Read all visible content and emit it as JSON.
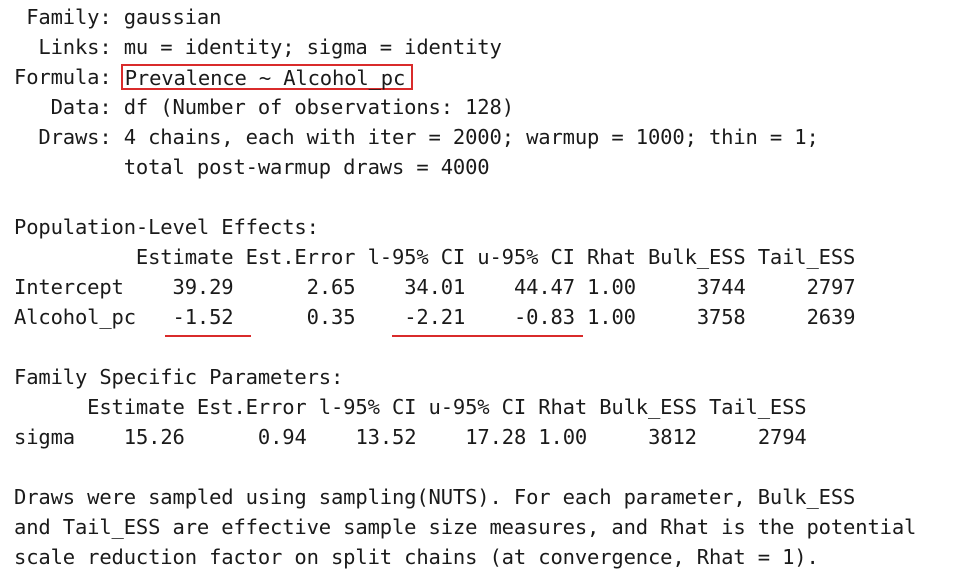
{
  "model_summary": {
    "family_key": " Family: ",
    "family_value": "gaussian",
    "links_key": "  Links: ",
    "links_value": "mu = identity; sigma = identity",
    "formula_key": "Formula: ",
    "formula_value": "Prevalence ~ Alcohol_pc",
    "data_key": "   Data: ",
    "data_value": "df (Number of observations: 128)",
    "draws_key": "  Draws: ",
    "draws_value": "4 chains, each with iter = 2000; warmup = 1000; thin = 1;",
    "draws_cont": "         total post-warmup draws = 4000"
  },
  "population_effects": {
    "title": "Population-Level Effects:",
    "header": "          Estimate Est.Error l-95% CI u-95% CI Rhat Bulk_ESS Tail_ESS",
    "rows": [
      {
        "name": "Intercept",
        "estimate": "39.29",
        "est_error": "2.65",
        "l95": "34.01",
        "u95": "44.47",
        "rhat": "1.00",
        "bulk_ess": "3744",
        "tail_ess": "2797"
      },
      {
        "name": "Alcohol_pc",
        "estimate": "-1.52",
        "est_error": "0.35",
        "l95": "-2.21",
        "u95": "-0.83",
        "rhat": "1.00",
        "bulk_ess": "3758",
        "tail_ess": "2639"
      }
    ]
  },
  "family_params": {
    "title": "Family Specific Parameters:",
    "header": "      Estimate Est.Error l-95% CI u-95% CI Rhat Bulk_ESS Tail_ESS",
    "rows": [
      {
        "name": "sigma",
        "estimate": "15.26",
        "est_error": "0.94",
        "l95": "13.52",
        "u95": "17.28",
        "rhat": "1.00",
        "bulk_ess": "3812",
        "tail_ess": "2794"
      }
    ]
  },
  "footer": {
    "line1": "Draws were sampled using sampling(NUTS). For each parameter, Bulk_ESS",
    "line2": "and Tail_ESS are effective sample size measures, and Rhat is the potential",
    "line3": "scale reduction factor on split chains (at convergence, Rhat = 1)."
  },
  "colors": {
    "text": "#1a1a1a",
    "highlight": "#d92b2b",
    "background": "#ffffff"
  }
}
